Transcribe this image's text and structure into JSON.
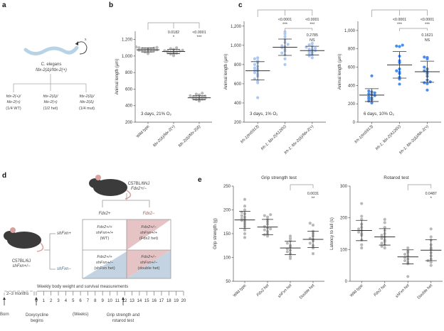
{
  "panel_labels": [
    "a",
    "b",
    "c",
    "d",
    "e"
  ],
  "panel_a": {
    "organism": "C. elegans",
    "parent_genotype": "fdx-2(Δ)/fdx-2(+)",
    "self_cross_symbol": "x",
    "offspring": [
      {
        "line1": "fdx-2(+)/",
        "line2": "fdx-2(+)",
        "ratio": "(1/4 WT)"
      },
      {
        "line1": "fdx-2(Δ)/",
        "line2": "fdx-2(+)",
        "ratio": "(1/2 het)"
      },
      {
        "line1": "fdx-2(Δ)/",
        "line2": "fdx-2(Δ)",
        "ratio": "(1/4 mut)"
      }
    ]
  },
  "panel_d": {
    "mouse_top_strain": "C57BL/6NJ",
    "mouse_top_genotype": "Fdx2+/−",
    "mouse_left_strain": "C57BL/6J",
    "mouse_left_genotype": "shFxn+/−",
    "col_headers": [
      "Fdx2+",
      "Fdx2−"
    ],
    "row_headers": [
      "shFxn+",
      "shFxn−"
    ],
    "cells": [
      {
        "l1": "Fdx2+/+",
        "l2": "shFxn+/+",
        "l3": "(WT)"
      },
      {
        "l1": "Fdx2+/−",
        "l2": "shFxn+/+",
        "l3": "(Fdx2 het)"
      },
      {
        "l1": "Fdx2+/+",
        "l2": "shFxn+/−",
        "l3": "(shFxn het)"
      },
      {
        "l1": "Fdx2+/−",
        "l2": "shFxn+/−",
        "l3": "(double het)"
      }
    ],
    "colors": {
      "fdx2_minus": "#b84a4a",
      "shfxn_minus": "#3c6fa8",
      "pink": "#e6c4c6",
      "blue": "#c4d3e2"
    },
    "timeline": {
      "title": "Weekly body weight and survival measurements",
      "pre_label": "2–3 months",
      "born_label": "Born",
      "weeks": [
        "0",
        "1",
        "2",
        "3",
        "4",
        "5",
        "6",
        "7",
        "8",
        "9",
        "10",
        "11",
        "12",
        "13",
        "14",
        "15",
        "16",
        "17",
        "18",
        "19",
        "20"
      ],
      "weeks_label": "(Weeks)",
      "event1": "Doxycycline begins",
      "event2": "Grip strength and rotarod test"
    }
  },
  "chart_data": [
    {
      "id": "b",
      "type": "scatter",
      "title": "",
      "xlabel": "",
      "ylabel": "Animal length (μm)",
      "ylim": [
        200,
        1300
      ],
      "yticks": [
        200,
        400,
        600,
        800,
        1000,
        1200
      ],
      "ytick_labels": [
        "200",
        "400",
        "600",
        "800",
        "1,000",
        "1,200"
      ],
      "categories": [
        "Wild type",
        "fdx-2(Δ)/fdx-2(+)",
        "fdx-2(Δ)/fdx-2(Δ)"
      ],
      "dot_color": "#b5b5b5",
      "annotation": "3 days, 21% O2",
      "series": [
        {
          "name": "Wild type",
          "mean": 1075,
          "sd": 25,
          "values": [
            1030,
            1045,
            1050,
            1060,
            1065,
            1070,
            1075,
            1080,
            1085,
            1090,
            1095,
            1100,
            1105,
            1110,
            1060,
            1080
          ]
        },
        {
          "name": "fdx-2(Δ)/fdx-2(+)",
          "mean": 1055,
          "sd": 25,
          "values": [
            1005,
            1015,
            1025,
            1035,
            1045,
            1050,
            1055,
            1060,
            1065,
            1070,
            1080,
            1090,
            1100,
            1040,
            1060
          ]
        },
        {
          "name": "fdx-2(Δ)/fdx-2(Δ)",
          "mean": 495,
          "sd": 25,
          "values": [
            455,
            465,
            475,
            480,
            485,
            490,
            495,
            500,
            505,
            510,
            515,
            520,
            530,
            540,
            550
          ]
        }
      ],
      "comparisons": [
        {
          "group": 1,
          "p": "0.0182",
          "stars": "*"
        },
        {
          "group": 2,
          "p": "<0.0001",
          "stars": "***"
        }
      ]
    },
    {
      "id": "c1",
      "type": "scatter",
      "ylabel": "Animal length (μm)",
      "ylim": [
        200,
        1250
      ],
      "yticks": [
        200,
        400,
        600,
        800,
        1000,
        1200
      ],
      "ytick_labels": [
        "200",
        "400",
        "600",
        "800",
        "1,000",
        "1,200"
      ],
      "categories": [
        "frh-1(tm5913)",
        "frh-1; fdx-2(A126V)",
        "frh-1; fdx-2(Δ)/fdx-2(+)"
      ],
      "dot_color": "#a9c6f2",
      "annotation": "3 days, 1% O2",
      "series": [
        {
          "name": "frh-1(tm5913)",
          "mean": 735,
          "sd": 95,
          "values": [
            455,
            610,
            630,
            650,
            680,
            700,
            715,
            730,
            740,
            750,
            765,
            780,
            800,
            820,
            840,
            860,
            870
          ]
        },
        {
          "name": "frh-1; fdx-2(A126V)",
          "mean": 980,
          "sd": 85,
          "values": [
            800,
            860,
            900,
            920,
            940,
            960,
            975,
            985,
            995,
            1010,
            1030,
            1060,
            1090,
            1120,
            1140
          ]
        },
        {
          "name": "frh-1; fdx-2(Δ)/fdx-2(+)",
          "mean": 945,
          "sd": 45,
          "values": [
            870,
            890,
            900,
            915,
            925,
            935,
            945,
            955,
            960,
            970,
            980,
            990,
            1005,
            1020
          ]
        }
      ],
      "comparisons": [
        {
          "group": 1,
          "p": "<0.0001",
          "stars": "***"
        },
        {
          "group": 2,
          "p": "<0.0001",
          "stars": "***"
        },
        {
          "group": "1-2",
          "p": "0.2785",
          "stars": "NS"
        }
      ]
    },
    {
      "id": "c2",
      "type": "scatter",
      "ylabel": "Animal length (μm)",
      "ylim": [
        0,
        1100
      ],
      "yticks": [
        0,
        200,
        400,
        600,
        800,
        1000
      ],
      "ytick_labels": [
        "0",
        "200",
        "400",
        "600",
        "800",
        "1,000"
      ],
      "categories": [
        "frh-1(tm5913)",
        "frh-1; fdx-2(A126V)",
        "frh-1; fdx-2(Δ)/fdx-2(+)"
      ],
      "dot_color": "#3f86ee",
      "annotation": "6 days, 10% O2",
      "series": [
        {
          "name": "frh-1(tm5913)",
          "mean": 295,
          "sd": 70,
          "values": [
            210,
            230,
            245,
            255,
            265,
            275,
            290,
            300,
            310,
            320,
            330,
            340,
            505
          ]
        },
        {
          "name": "frh-1; fdx-2(A126V)",
          "mean": 625,
          "sd": 145,
          "values": [
            415,
            470,
            490,
            530,
            545,
            560,
            580,
            650,
            670,
            720,
            825,
            840,
            830
          ]
        },
        {
          "name": "frh-1; fdx-2(Δ)/fdx-2(+)",
          "mean": 550,
          "sd": 115,
          "values": [
            350,
            420,
            430,
            440,
            460,
            500,
            530,
            550,
            560,
            580,
            600,
            690,
            705,
            710
          ]
        }
      ],
      "comparisons": [
        {
          "group": 1,
          "p": "<0.0001",
          "stars": "***"
        },
        {
          "group": 2,
          "p": "<0.0001",
          "stars": "***"
        },
        {
          "group": "1-2",
          "p": "0.1621",
          "stars": "NS"
        }
      ]
    },
    {
      "id": "e1",
      "type": "scatter",
      "title": "Grip strength test",
      "ylabel": "Grip strength (g)",
      "ylim": [
        50,
        250
      ],
      "yticks": [
        50,
        100,
        150,
        200,
        250
      ],
      "ytick_labels": [
        "50",
        "100",
        "150",
        "200",
        "250"
      ],
      "categories": [
        "Wild type",
        "Fdx2 het",
        "shFxn het",
        "Double het"
      ],
      "dot_color": "#b5b5b5",
      "series": [
        {
          "name": "Wild type",
          "mean": 179,
          "sd": 18,
          "values": [
            142,
            150,
            158,
            165,
            170,
            175,
            178,
            180,
            182,
            185,
            188,
            192,
            195,
            200,
            208,
            222
          ]
        },
        {
          "name": "Fdx2 het",
          "mean": 164,
          "sd": 16,
          "values": [
            145,
            148,
            150,
            155,
            158,
            160,
            162,
            165,
            170,
            175,
            180,
            185,
            188,
            190
          ]
        },
        {
          "name": "shFxn het",
          "mean": 120,
          "sd": 14,
          "values": [
            98,
            102,
            108,
            112,
            115,
            118,
            122,
            125,
            130,
            135,
            140,
            145
          ]
        },
        {
          "name": "Double het",
          "mean": 138,
          "sd": 17,
          "values": [
            108,
            120,
            125,
            130,
            135,
            138,
            140,
            145,
            150,
            155,
            168,
            172
          ]
        }
      ],
      "comparisons": [
        {
          "groups": "shFxn het vs Double het",
          "p": "0.0031",
          "stars": "**"
        }
      ]
    },
    {
      "id": "e2",
      "type": "scatter",
      "title": "Rotarod test",
      "ylabel": "Latency to fall (s)",
      "ylim": [
        0,
        300
      ],
      "yticks": [
        0,
        100,
        200,
        300
      ],
      "ytick_labels": [
        "0",
        "100",
        "200",
        "300"
      ],
      "categories": [
        "Wild type",
        "Fdx2 het",
        "shFxn het",
        "Double het"
      ],
      "dot_color": "#b5b5b5",
      "series": [
        {
          "name": "Wild type",
          "mean": 160,
          "sd": 32,
          "values": [
            105,
            115,
            130,
            145,
            150,
            155,
            160,
            165,
            170,
            180,
            195,
            205,
            245
          ]
        },
        {
          "name": "Fdx2 het",
          "mean": 140,
          "sd": 26,
          "values": [
            105,
            110,
            115,
            120,
            125,
            130,
            135,
            140,
            145,
            150,
            160,
            170,
            185,
            195
          ]
        },
        {
          "name": "shFxn het",
          "mean": 77,
          "sd": 22,
          "values": [
            15,
            55,
            60,
            65,
            70,
            75,
            80,
            85,
            90,
            95,
            105
          ]
        },
        {
          "name": "Double het",
          "mean": 98,
          "sd": 33,
          "values": [
            50,
            60,
            65,
            70,
            80,
            90,
            100,
            105,
            115,
            130,
            140,
            165
          ]
        }
      ],
      "comparisons": [
        {
          "groups": "shFxn het vs Double het",
          "p": "0.0487",
          "stars": "*"
        }
      ]
    }
  ]
}
